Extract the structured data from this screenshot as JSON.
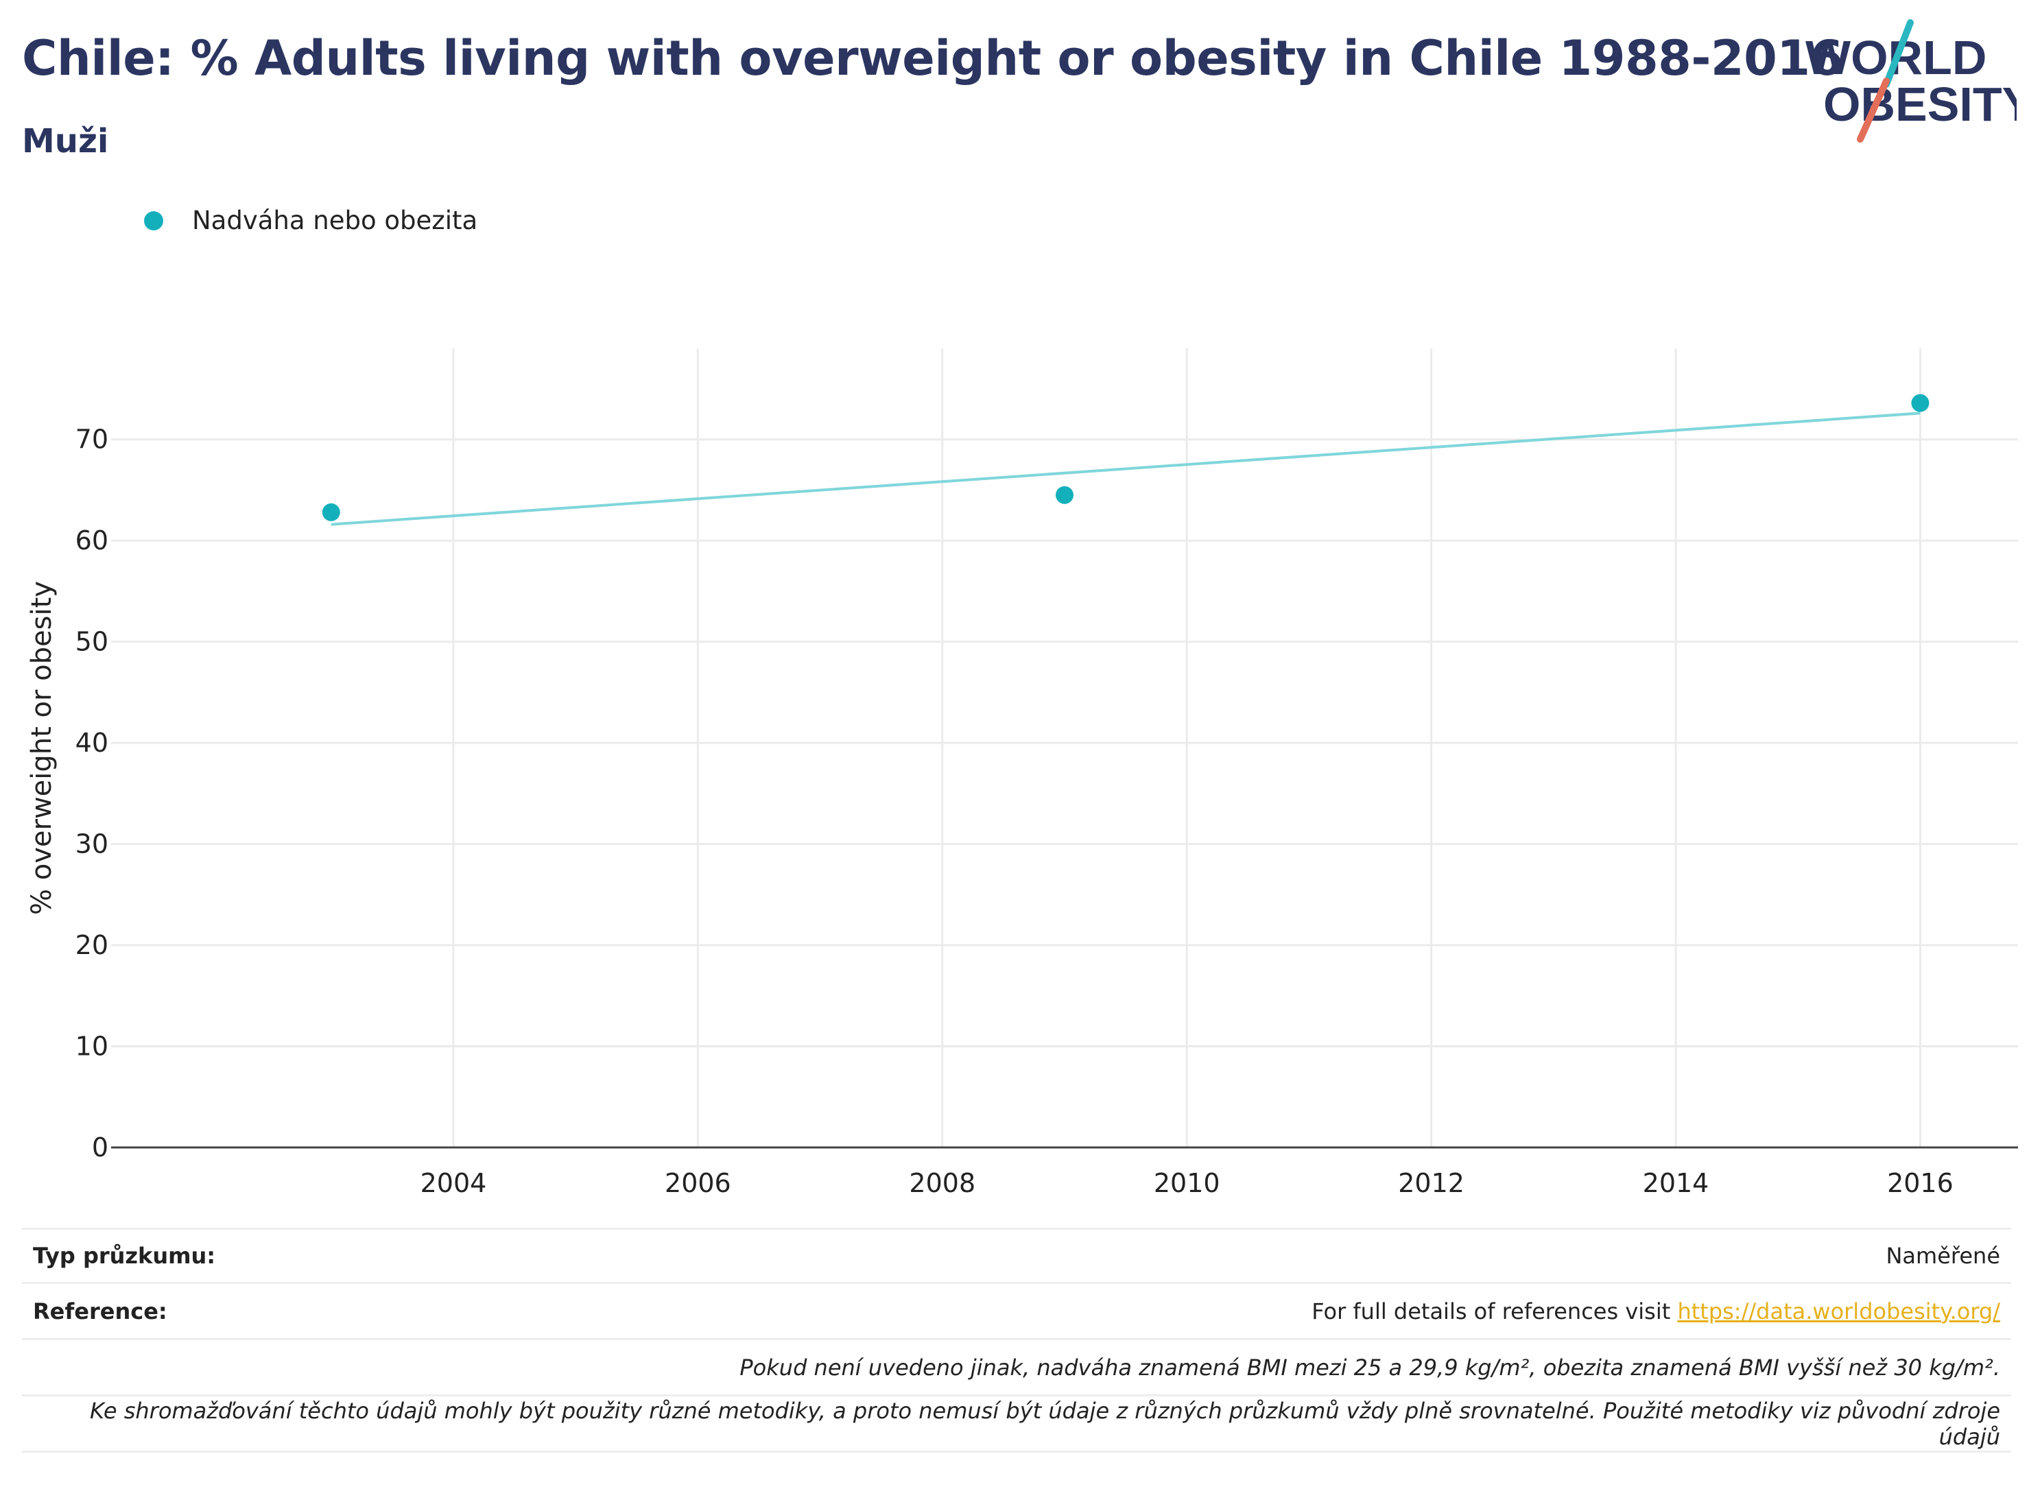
{
  "header": {
    "title": "Chile: % Adults living with overweight or obesity in Chile 1988-2016",
    "subtitle": "Muži"
  },
  "logo": {
    "line1": "WORLD",
    "line2": "OBESITY"
  },
  "chart_data": {
    "type": "scatter",
    "series": [
      {
        "name": "Nadváha nebo obezita",
        "color": "#13b0bb",
        "x": [
          2003,
          2009,
          2016
        ],
        "y": [
          62.8,
          64.5,
          73.6
        ]
      }
    ],
    "trend_line": {
      "color": "#7fd6db",
      "x": [
        2003,
        2016
      ],
      "y": [
        61.6,
        72.6
      ]
    },
    "xticks": [
      2004,
      2006,
      2008,
      2010,
      2012,
      2014,
      2016
    ],
    "yticks": [
      0,
      10,
      20,
      30,
      40,
      50,
      60,
      70
    ],
    "xlim": [
      2001.2,
      2016.8
    ],
    "ylim": [
      0,
      79
    ],
    "ylabel": "% overweight or obesity",
    "grid": true,
    "legend_position": "top-left"
  },
  "footer": {
    "survey_type_label": "Typ průzkumu:",
    "survey_type_value": "Naměřené",
    "reference_label": "Reference:",
    "reference_text": "For full details of references visit ",
    "reference_link": "https://data.worldobesity.org/",
    "note_bmi": "Pokud není uvedeno jinak, nadváha znamená BMI mezi 25 a 29,9 kg/m², obezita znamená BMI vyšší než 30 kg/m².",
    "note_methods": "Ke shromažďování těchto údajů mohly být použity různé metodiky, a proto nemusí být údaje z různých průzkumů vždy plně srovnatelné. Použité metodiky viz původní zdroje údajů"
  }
}
